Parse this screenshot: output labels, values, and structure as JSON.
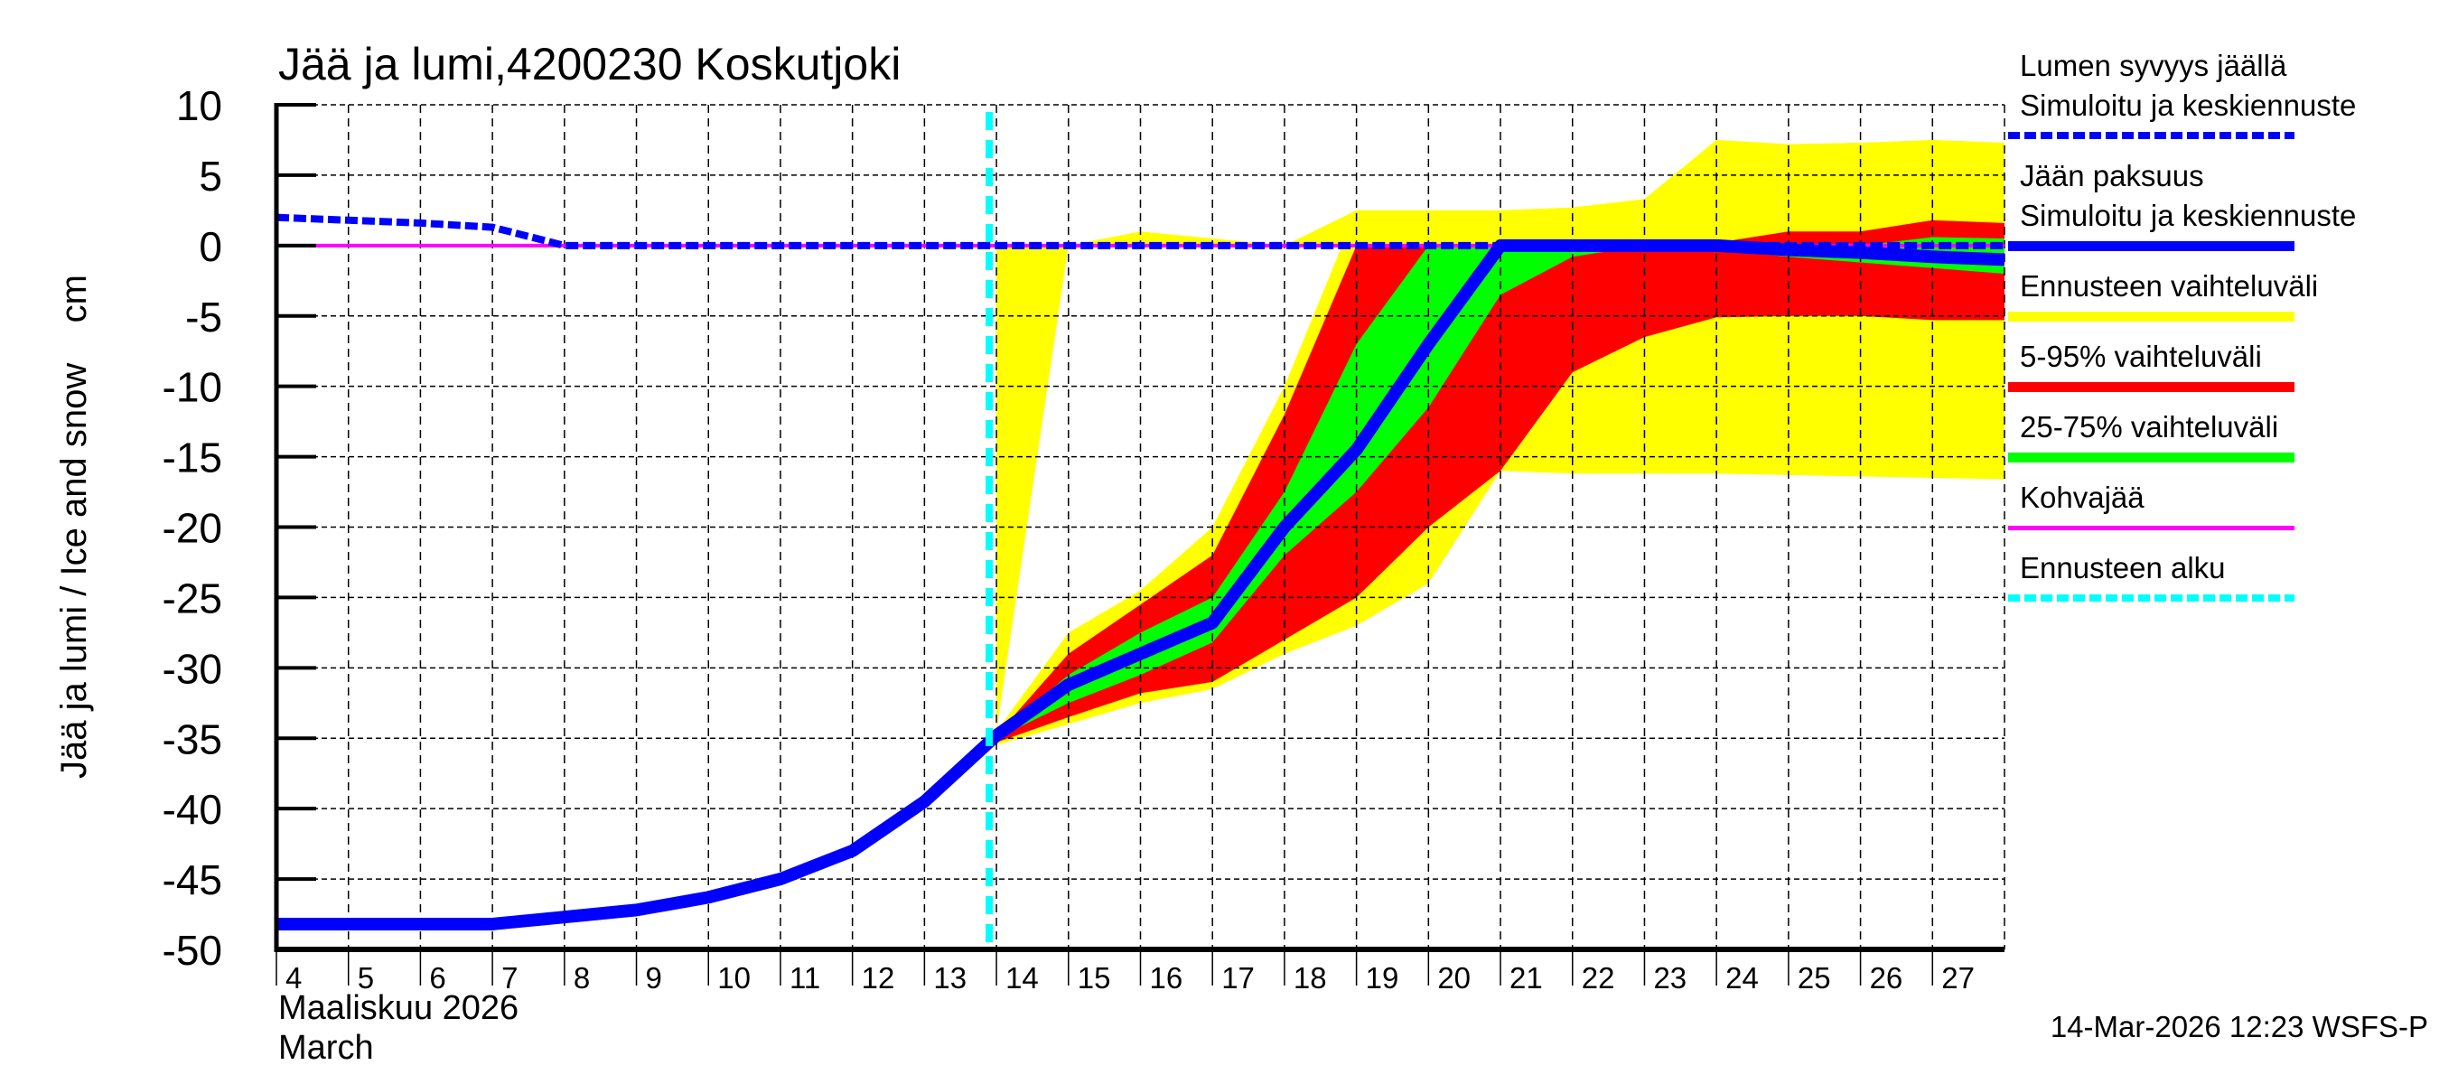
{
  "chart_data": {
    "type": "area",
    "title": "Jää ja lumi,4200230 Koskutjoki",
    "ylabel": "Jää ja lumi / Ice and snow    cm",
    "xlabel_line1": "Maaliskuu 2026",
    "xlabel_line2": "March",
    "ylim": [
      -50,
      10
    ],
    "yticks": [
      10,
      5,
      0,
      -5,
      -10,
      -15,
      -20,
      -25,
      -30,
      -35,
      -40,
      -45,
      -50
    ],
    "xlim": [
      4,
      28
    ],
    "xticks": [
      4,
      5,
      6,
      7,
      8,
      9,
      10,
      11,
      12,
      13,
      14,
      15,
      16,
      17,
      18,
      19,
      20,
      21,
      22,
      23,
      24,
      25,
      26,
      27
    ],
    "grid": true,
    "forecast_start_day": 13.9,
    "legend_position": "right",
    "legend": [
      {
        "label1": "Lumen syvyys jäällä",
        "label2": "Simuloitu ja keskiennuste",
        "color": "#0000ff",
        "style": "dashed"
      },
      {
        "label1": "Jään paksuus",
        "label2": "Simuloitu ja keskiennuste",
        "color": "#0000ff",
        "style": "solid"
      },
      {
        "label1": "Ennusteen vaihteluväli",
        "label2": "",
        "color": "#ffff00",
        "style": "band"
      },
      {
        "label1": "5-95% vaihteluväli",
        "label2": "",
        "color": "#ff0000",
        "style": "band"
      },
      {
        "label1": "25-75% vaihteluväli",
        "label2": "",
        "color": "#00ff00",
        "style": "band"
      },
      {
        "label1": "Kohvajää",
        "label2": "",
        "color": "#ff00ff",
        "style": "solid-thin"
      },
      {
        "label1": "Ennusteen alku",
        "label2": "",
        "color": "#00ffff",
        "style": "dashed"
      }
    ],
    "series": [
      {
        "name": "Jään paksuus (simuloitu ja keskiennuste)",
        "x": [
          4,
          5,
          6,
          7,
          8,
          9,
          10,
          11,
          12,
          13,
          14,
          15,
          16,
          17,
          18,
          19,
          20,
          21,
          22,
          23,
          24,
          25,
          26,
          27,
          28
        ],
        "values": [
          -48.2,
          -48.2,
          -48.2,
          -48.2,
          -47.7,
          -47.2,
          -46.3,
          -45,
          -43,
          -39.5,
          -34.8,
          -31.2,
          -29,
          -26.8,
          -20,
          -14.5,
          -7,
          0,
          0,
          0,
          0,
          -0.3,
          -0.5,
          -0.8,
          -1
        ]
      },
      {
        "name": "Lumen syvyys jäällä (simuloitu ja keskiennuste)",
        "x": [
          4,
          5,
          6,
          7,
          8,
          9,
          10,
          11,
          12,
          13,
          14,
          15,
          16,
          17,
          18,
          19,
          20,
          21,
          22,
          23,
          24,
          25,
          26,
          27,
          28
        ],
        "values": [
          2,
          1.8,
          1.6,
          1.3,
          0,
          0,
          0,
          0,
          0,
          0,
          0,
          0,
          0,
          0,
          0,
          0,
          0,
          0,
          0,
          0,
          0,
          0,
          0,
          0,
          0
        ]
      },
      {
        "name": "Kohvajää",
        "x": [
          4,
          28
        ],
        "values": [
          0,
          0
        ]
      }
    ],
    "bands": [
      {
        "name": "Ennusteen vaihteluväli",
        "x": [
          14,
          15,
          16,
          17,
          18,
          19,
          20,
          21,
          22,
          23,
          24,
          25,
          26,
          27,
          28
        ],
        "upper": [
          -34.5,
          0,
          1,
          0.5,
          0,
          2.5,
          2.5,
          2.5,
          2.7,
          3.3,
          7.5,
          7.2,
          7.3,
          7.5,
          7.3
        ],
        "inner_upper": [
          -34.5,
          -27.5,
          -24.5,
          -20,
          -10,
          2.5,
          2.5,
          2.5,
          2.7,
          3.3,
          7.5,
          7.2,
          7.3,
          7.5,
          7.3
        ],
        "lower": [
          -35.5,
          -34,
          -32.5,
          -31.5,
          -29,
          -27,
          -24,
          -16,
          -16.2,
          -16.2,
          -16.2,
          -16.3,
          -16.4,
          -16.5,
          -16.6
        ]
      },
      {
        "name": "5-95% vaihteluväli",
        "x": [
          14,
          15,
          16,
          17,
          18,
          19,
          20,
          21,
          22,
          23,
          24,
          25,
          26,
          27,
          28
        ],
        "upper": [
          -34.8,
          -29,
          -25.5,
          -22,
          -12,
          0,
          0,
          0,
          0,
          0,
          0.2,
          1,
          1,
          1.8,
          1.6
        ],
        "lower": [
          -35.3,
          -33.5,
          -31.8,
          -31,
          -28,
          -25,
          -20,
          -16,
          -9,
          -6.5,
          -5.1,
          -5,
          -5,
          -5.3,
          -5.3
        ]
      },
      {
        "name": "25-75% vaihteluväli",
        "x": [
          14,
          15,
          16,
          17,
          18,
          19,
          20,
          21,
          22,
          23,
          24,
          25,
          26,
          27,
          28
        ],
        "upper": [
          -34.8,
          -30.5,
          -27.5,
          -25,
          -17.5,
          -7,
          0,
          0,
          0,
          0,
          0,
          0,
          0,
          0.6,
          0.5
        ],
        "lower": [
          -35,
          -32.5,
          -30.5,
          -28.2,
          -22,
          -17.5,
          -11.5,
          -3.5,
          -0.8,
          0,
          -0.3,
          -0.8,
          -1.2,
          -1.6,
          -2
        ]
      }
    ],
    "footer": "14-Mar-2026 12:23 WSFS-P"
  }
}
